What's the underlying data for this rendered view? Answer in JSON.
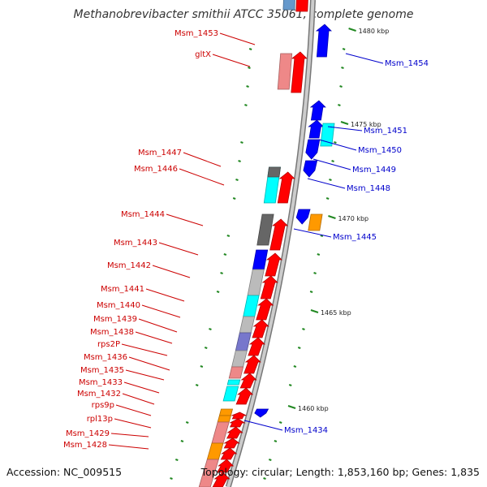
{
  "title": "Methanobrevibacter smithii ATCC 35061, complete genome",
  "footer": {
    "accession": "Accession: NC_009515",
    "topology": "Topology: circular; Length: 1,853,160 bp; Genes: 1,835"
  },
  "colors": {
    "forward": "#ff0000",
    "reverse": "#0000ff",
    "label_forward": "#cc0000",
    "label_reverse": "#0000cc",
    "cyan": "#00ffff",
    "orange": "#ff9900",
    "gray": "#bbbbbb",
    "dark_gray": "#666666",
    "slate": "#7777cc",
    "pink": "#ee8888",
    "backbone": "#999999",
    "tick": "#228822"
  },
  "ticks": [
    {
      "label": "1480 kbp"
    },
    {
      "label": "1475 kbp"
    },
    {
      "label": "1470 kbp"
    },
    {
      "label": "1465 kbp"
    },
    {
      "label": "1460 kbp"
    }
  ],
  "left_labels": [
    "Msm_1453",
    "gltX",
    "Msm_1447",
    "Msm_1446",
    "Msm_1444",
    "Msm_1443",
    "Msm_1442",
    "Msm_1441",
    "Msm_1440",
    "Msm_1439",
    "Msm_1438",
    "rps2P",
    "Msm_1436",
    "Msm_1435",
    "Msm_1433",
    "Msm_1432",
    "rps9p",
    "rpl13p",
    "Msm_1429",
    "Msm_1428"
  ],
  "right_labels": [
    "Msm_1454",
    "Msm_1451",
    "Msm_1450",
    "Msm_1449",
    "Msm_1448",
    "Msm_1445",
    "Msm_1434"
  ]
}
